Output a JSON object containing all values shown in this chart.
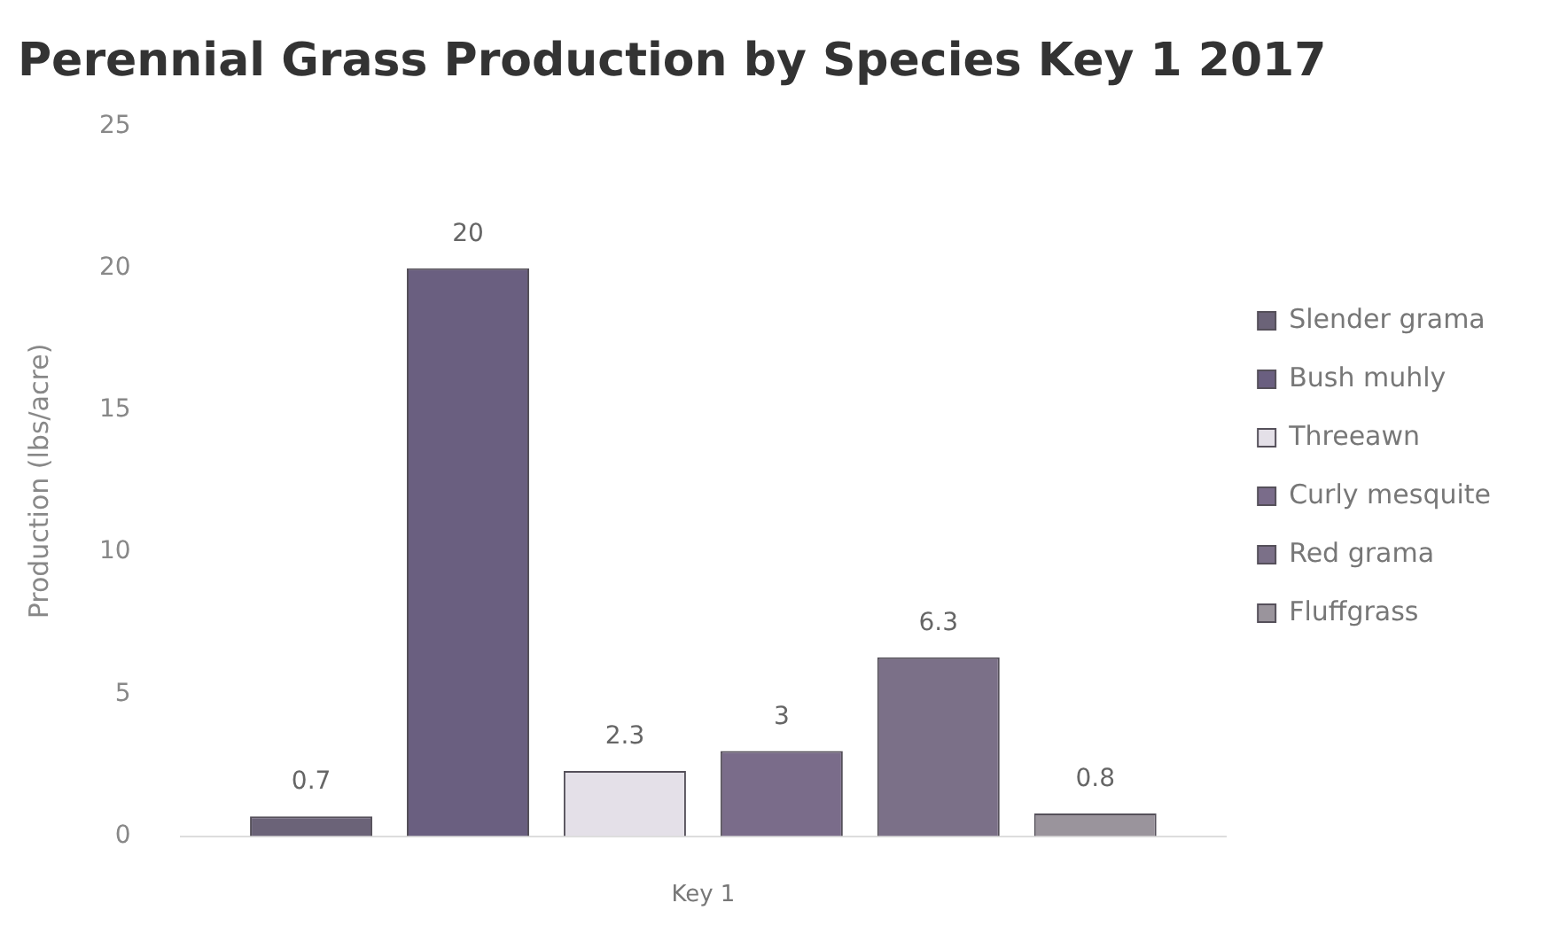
{
  "chart_data": {
    "type": "bar",
    "title": "Perennial Grass Production by Species Key 1 2017",
    "ylabel": "Production (lbs/acre)",
    "xlabel": "Key 1",
    "categories": [
      null
    ],
    "series": [
      {
        "name": "Slender grama",
        "color": "#6b6378",
        "values": [
          0.7
        ]
      },
      {
        "name": "Bush muhly",
        "color": "#6a5f80",
        "values": [
          20
        ]
      },
      {
        "name": "Threeawn",
        "color": "#e4e0e8",
        "values": [
          2.3
        ]
      },
      {
        "name": "Curly mesquite",
        "color": "#7a6c8a",
        "values": [
          3
        ]
      },
      {
        "name": "Red grama",
        "color": "#7b7088",
        "values": [
          6.3
        ]
      },
      {
        "name": "Fluffgrass",
        "color": "#9a949c",
        "values": [
          0.8
        ]
      }
    ],
    "ylim": [
      0,
      25
    ],
    "yticks": [
      0,
      5,
      10,
      15,
      20,
      25
    ],
    "grid": false,
    "legend": "right",
    "data_labels": true
  }
}
